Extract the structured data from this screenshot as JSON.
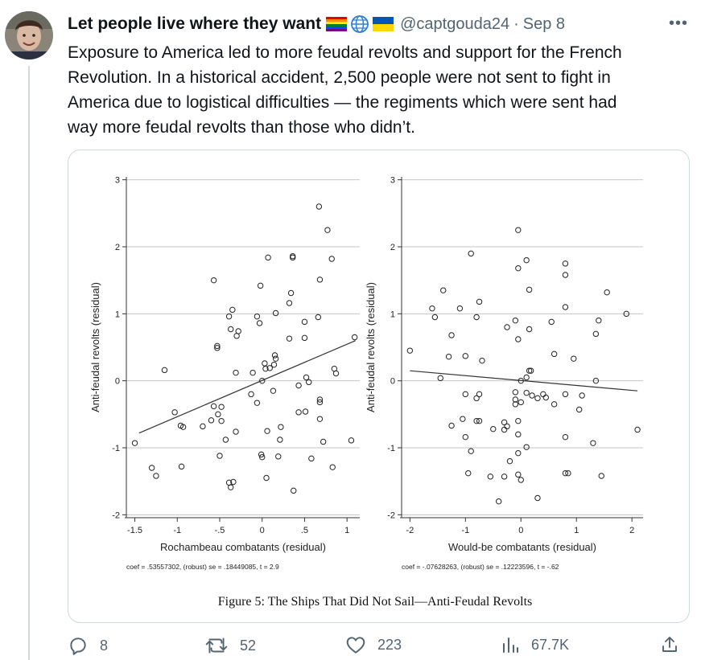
{
  "tweet": {
    "display_name": "Let people live where they want",
    "name_emojis": [
      "rainbow-flag",
      "globe",
      "ukraine-flag"
    ],
    "handle": "@captgouda24",
    "separator": "·",
    "date": "Sep 8",
    "more_label": "•••",
    "text_lines": [
      "Exposure to America led to more feudal revolts and support for the French",
      "Revolution. In a historical accident, 2,500 people were not sent to fight in",
      "America due to logistical difficulties — the regiments which were sent had",
      "way more feudal revolts than those who didn’t."
    ]
  },
  "figure": {
    "caption": "Figure 5: The Ships That Did Not Sail—Anti-Feudal Revolts"
  },
  "chart_data": [
    {
      "type": "scatter",
      "xlabel": "Rochambeau combatants (residual)",
      "ylabel": "Anti-feudal revolts (residual)",
      "note": "coef = .53557302, (robust) se = .18449085, t = 2.9",
      "x_ticks": [
        -1.5,
        -1,
        -0.5,
        0,
        0.5,
        1
      ],
      "x_tick_labels": [
        "-1.5",
        "-1",
        "-.5",
        "0",
        ".5",
        "1"
      ],
      "y_ticks": [
        -2,
        -1,
        0,
        1,
        2,
        3
      ],
      "y_tick_labels": [
        "-2",
        "-1",
        "0",
        "1",
        "2",
        "3"
      ],
      "xlim": [
        -1.6,
        1.15
      ],
      "ylim": [
        -2.02,
        3.02
      ],
      "grid": "horizontal",
      "fit_line": {
        "x": [
          -1.45,
          1.1
        ],
        "y": [
          -0.78,
          0.6
        ]
      },
      "points": [
        [
          0.67,
          2.6
        ],
        [
          0.77,
          2.25
        ],
        [
          0.82,
          1.82
        ],
        [
          0.07,
          1.84
        ],
        [
          0.36,
          1.86
        ],
        [
          0.36,
          1.84
        ],
        [
          0.68,
          1.51
        ],
        [
          -0.57,
          1.5
        ],
        [
          -0.02,
          1.42
        ],
        [
          0.34,
          1.31
        ],
        [
          0.32,
          1.16
        ],
        [
          -0.35,
          1.06
        ],
        [
          0.16,
          1.01
        ],
        [
          -0.39,
          0.96
        ],
        [
          -0.06,
          0.96
        ],
        [
          0.66,
          0.95
        ],
        [
          -0.03,
          0.86
        ],
        [
          0.5,
          0.88
        ],
        [
          -0.37,
          0.77
        ],
        [
          -0.28,
          0.74
        ],
        [
          -0.3,
          0.67
        ],
        [
          0.5,
          0.64
        ],
        [
          0.32,
          0.63
        ],
        [
          1.09,
          0.65
        ],
        [
          -0.53,
          0.52
        ],
        [
          -0.53,
          0.49
        ],
        [
          0.15,
          0.38
        ],
        [
          0.16,
          0.33
        ],
        [
          0.03,
          0.26
        ],
        [
          0.09,
          0.19
        ],
        [
          0.14,
          0.24
        ],
        [
          -0.31,
          0.12
        ],
        [
          -0.11,
          0.12
        ],
        [
          0.04,
          0.18
        ],
        [
          0.85,
          0.18
        ],
        [
          0.87,
          0.11
        ],
        [
          0.0,
          0.0
        ],
        [
          0.52,
          0.05
        ],
        [
          0.55,
          -0.02
        ],
        [
          0.43,
          -0.07
        ],
        [
          -1.15,
          0.16
        ],
        [
          -0.13,
          -0.2
        ],
        [
          0.13,
          -0.15
        ],
        [
          0.68,
          -0.28
        ],
        [
          0.68,
          -0.32
        ],
        [
          -0.06,
          -0.33
        ],
        [
          -0.57,
          -0.38
        ],
        [
          -0.48,
          -0.39
        ],
        [
          -0.52,
          -0.5
        ],
        [
          -1.03,
          -0.47
        ],
        [
          -0.48,
          -0.6
        ],
        [
          -0.6,
          -0.59
        ],
        [
          0.43,
          -0.47
        ],
        [
          0.51,
          -0.46
        ],
        [
          0.68,
          -0.57
        ],
        [
          -0.96,
          -0.67
        ],
        [
          -0.93,
          -0.69
        ],
        [
          -0.7,
          -0.68
        ],
        [
          0.22,
          -0.69
        ],
        [
          -0.31,
          -0.76
        ],
        [
          0.06,
          -0.75
        ],
        [
          -0.43,
          -0.88
        ],
        [
          0.21,
          -0.88
        ],
        [
          0.72,
          -0.91
        ],
        [
          1.05,
          -0.89
        ],
        [
          -1.5,
          -0.93
        ],
        [
          -0.5,
          -1.12
        ],
        [
          -0.01,
          -1.1
        ],
        [
          0.0,
          -1.14
        ],
        [
          0.19,
          -1.13
        ],
        [
          0.58,
          -1.16
        ],
        [
          -1.3,
          -1.3
        ],
        [
          -0.95,
          -1.28
        ],
        [
          0.83,
          -1.29
        ],
        [
          -1.25,
          -1.42
        ],
        [
          0.05,
          -1.45
        ],
        [
          -0.39,
          -1.52
        ],
        [
          -0.34,
          -1.51
        ],
        [
          -0.37,
          -1.59
        ],
        [
          0.37,
          -1.64
        ]
      ]
    },
    {
      "type": "scatter",
      "xlabel": "Would-be combatants (residual)",
      "ylabel": "Anti-feudal revolts (residual)",
      "note": "coef = -.07628263, (robust) se = .12223596, t = -.62",
      "x_ticks": [
        -2,
        -1,
        0,
        1,
        2
      ],
      "x_tick_labels": [
        "-2",
        "-1",
        "0",
        "1",
        "2"
      ],
      "y_ticks": [
        -2,
        -1,
        0,
        1,
        2,
        3
      ],
      "y_tick_labels": [
        "-2",
        "-1",
        "0",
        "1",
        "2",
        "3"
      ],
      "xlim": [
        -2.15,
        2.2
      ],
      "ylim": [
        -2.02,
        3.02
      ],
      "grid": "horizontal",
      "fit_line": {
        "x": [
          -2,
          2.1
        ],
        "y": [
          0.15,
          -0.15
        ]
      },
      "points": [
        [
          -0.05,
          2.25
        ],
        [
          -0.9,
          1.9
        ],
        [
          0.1,
          1.8
        ],
        [
          0.8,
          1.75
        ],
        [
          -0.05,
          1.68
        ],
        [
          0.8,
          1.58
        ],
        [
          -1.4,
          1.35
        ],
        [
          0.15,
          1.36
        ],
        [
          1.55,
          1.32
        ],
        [
          -1.6,
          1.08
        ],
        [
          -1.1,
          1.08
        ],
        [
          -0.75,
          1.18
        ],
        [
          0.8,
          1.1
        ],
        [
          1.9,
          1.0
        ],
        [
          -1.55,
          0.95
        ],
        [
          -0.8,
          0.95
        ],
        [
          -0.1,
          0.9
        ],
        [
          1.4,
          0.9
        ],
        [
          -0.25,
          0.8
        ],
        [
          0.15,
          0.77
        ],
        [
          0.55,
          0.88
        ],
        [
          1.35,
          0.7
        ],
        [
          -0.05,
          0.62
        ],
        [
          -1.25,
          0.68
        ],
        [
          -2.0,
          0.45
        ],
        [
          -1.3,
          0.36
        ],
        [
          -1.0,
          0.37
        ],
        [
          -0.7,
          0.3
        ],
        [
          0.6,
          0.4
        ],
        [
          0.95,
          0.33
        ],
        [
          0.15,
          0.15
        ],
        [
          0.18,
          0.15
        ],
        [
          0.1,
          0.05
        ],
        [
          0.0,
          0.0
        ],
        [
          -1.45,
          0.04
        ],
        [
          1.35,
          0.0
        ],
        [
          -1.0,
          -0.2
        ],
        [
          -0.75,
          -0.2
        ],
        [
          -0.8,
          -0.26
        ],
        [
          -0.1,
          -0.17
        ],
        [
          0.1,
          -0.18
        ],
        [
          0.2,
          -0.22
        ],
        [
          0.4,
          -0.2
        ],
        [
          0.45,
          -0.25
        ],
        [
          0.3,
          -0.26
        ],
        [
          0.8,
          -0.2
        ],
        [
          1.1,
          -0.22
        ],
        [
          0.6,
          -0.35
        ],
        [
          -0.1,
          -0.28
        ],
        [
          0.0,
          -0.32
        ],
        [
          -0.1,
          -0.35
        ],
        [
          1.05,
          -0.43
        ],
        [
          -1.05,
          -0.57
        ],
        [
          -0.8,
          -0.6
        ],
        [
          -0.75,
          -0.6
        ],
        [
          -0.3,
          -0.62
        ],
        [
          -1.25,
          -0.67
        ],
        [
          -0.25,
          -0.68
        ],
        [
          -0.5,
          -0.72
        ],
        [
          -0.3,
          -0.73
        ],
        [
          -0.05,
          -0.6
        ],
        [
          -0.05,
          -0.8
        ],
        [
          -1.0,
          -0.84
        ],
        [
          0.8,
          -0.84
        ],
        [
          2.1,
          -0.73
        ],
        [
          1.3,
          -0.93
        ],
        [
          0.1,
          -0.99
        ],
        [
          -0.9,
          -1.05
        ],
        [
          -0.2,
          -1.2
        ],
        [
          -0.05,
          -1.08
        ],
        [
          -0.95,
          -1.38
        ],
        [
          -0.55,
          -1.43
        ],
        [
          -0.3,
          -1.43
        ],
        [
          0.8,
          -1.38
        ],
        [
          0.85,
          -1.38
        ],
        [
          1.45,
          -1.42
        ],
        [
          -0.05,
          -1.4
        ],
        [
          0.0,
          -1.48
        ],
        [
          0.3,
          -1.75
        ],
        [
          -0.4,
          -1.8
        ]
      ]
    }
  ],
  "actions": {
    "reply_count": "8",
    "retweet_count": "52",
    "like_count": "223",
    "views_count": "67.7K"
  },
  "colors": {
    "text_primary": "#0f1419",
    "text_secondary": "#536471",
    "border": "#cfd9de",
    "grid": "#bdbdbd"
  }
}
